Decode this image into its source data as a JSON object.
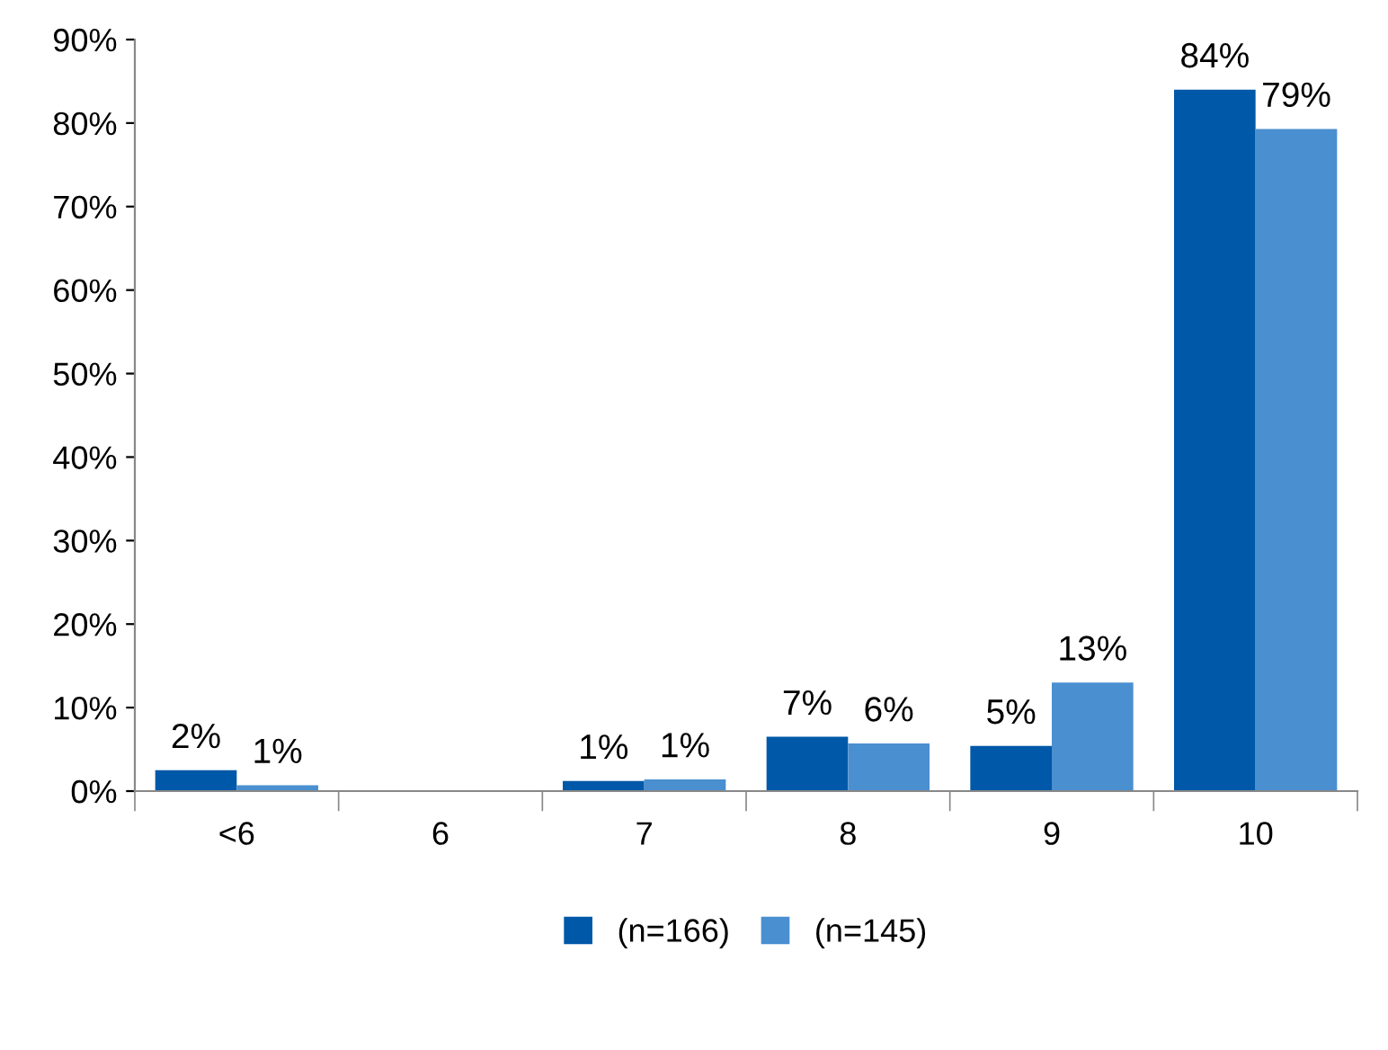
{
  "chart_data": {
    "type": "bar",
    "categories": [
      "<6",
      "6",
      "7",
      "8",
      "9",
      "10"
    ],
    "series": [
      {
        "name": "(n=166)",
        "color": "#0058a8",
        "values": [
          2.5,
          0,
          1.2,
          6.5,
          5.4,
          84
        ],
        "value_labels": [
          "2%",
          null,
          "1%",
          "7%",
          "5%",
          "84%"
        ]
      },
      {
        "name": "(n=145)",
        "color": "#4a8fd0",
        "values": [
          0.7,
          0,
          1.4,
          5.7,
          13,
          79.3
        ],
        "value_labels": [
          "1%",
          null,
          "1%",
          "6%",
          "13%",
          "79%"
        ]
      }
    ],
    "ylim": [
      0,
      90
    ],
    "yticks": [
      {
        "value": 0,
        "label": "0%"
      },
      {
        "value": 10,
        "label": "10%"
      },
      {
        "value": 20,
        "label": "20%"
      },
      {
        "value": 30,
        "label": "30%"
      },
      {
        "value": 40,
        "label": "40%"
      },
      {
        "value": 50,
        "label": "50%"
      },
      {
        "value": 60,
        "label": "60%"
      },
      {
        "value": 70,
        "label": "70%"
      },
      {
        "value": 80,
        "label": "80%"
      },
      {
        "value": 90,
        "label": "90%"
      }
    ],
    "grid": false,
    "legend": "bottom"
  }
}
